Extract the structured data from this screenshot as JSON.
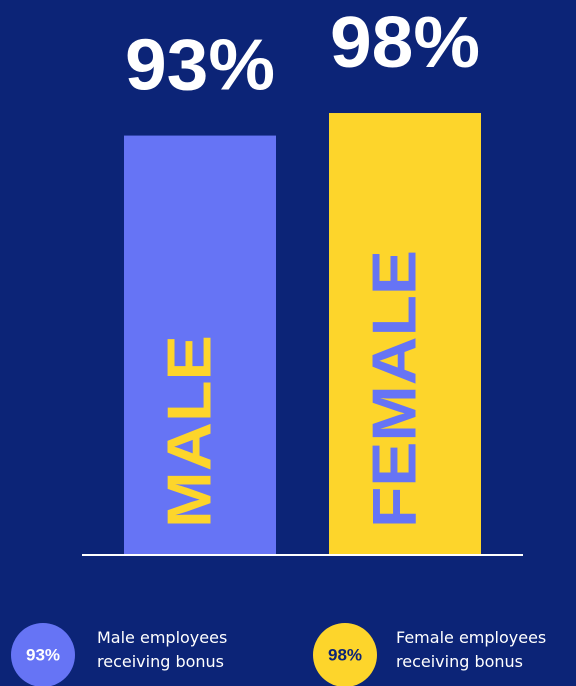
{
  "chart_data": {
    "type": "bar",
    "categories": [
      "MALE",
      "FEMALE"
    ],
    "values": [
      93,
      98
    ],
    "value_labels": [
      "93%",
      "98%"
    ],
    "colors": [
      "#6674f5",
      "#fdd52b"
    ],
    "legend": [
      "Male employees receiving bonus",
      "Female employees receiving bonus"
    ]
  }
}
